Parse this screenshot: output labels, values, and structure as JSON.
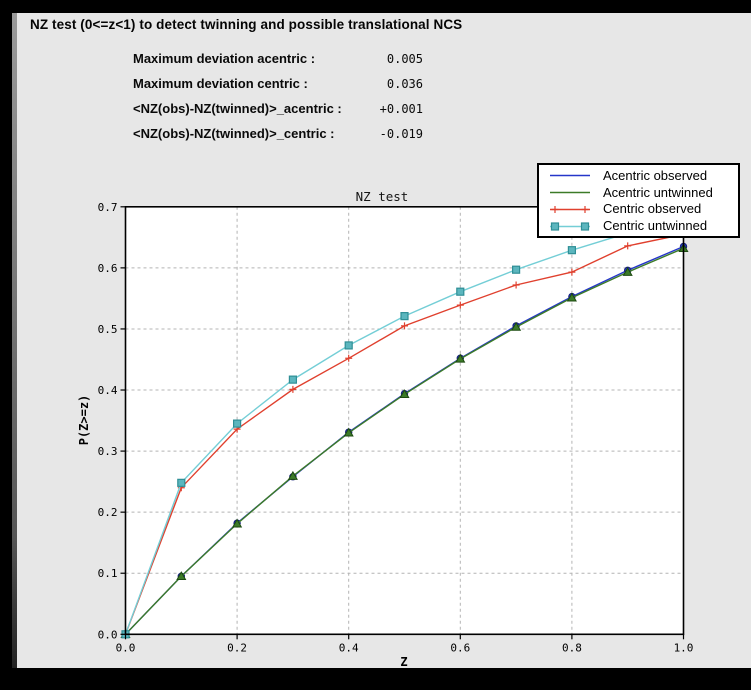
{
  "header": {
    "title": "NZ test (0<=z<1) to detect twinning and possible translational NCS"
  },
  "stats": [
    {
      "label": "Maximum deviation acentric :",
      "value": "0.005"
    },
    {
      "label": "Maximum deviation centric :",
      "value": "0.036"
    },
    {
      "label": "<NZ(obs)-NZ(twinned)>_acentric :",
      "value": "+0.001"
    },
    {
      "label": "<NZ(obs)-NZ(twinned)>_centric :",
      "value": "-0.019"
    }
  ],
  "chart_data": {
    "type": "line",
    "title": "NZ test",
    "xlabel": "Z",
    "ylabel": "P(Z>=z)",
    "xlim": [
      0.0,
      1.0
    ],
    "ylim": [
      0.0,
      0.7
    ],
    "xticks": [
      0.0,
      0.2,
      0.4,
      0.6,
      0.8,
      1.0
    ],
    "yticks": [
      0.0,
      0.1,
      0.2,
      0.3,
      0.4,
      0.5,
      0.6,
      0.7
    ],
    "grid": true,
    "grid_color": "#b4b4b4",
    "legend_position": "top-right",
    "x": [
      0.0,
      0.1,
      0.2,
      0.3,
      0.4,
      0.5,
      0.6,
      0.7,
      0.8,
      0.9,
      1.0
    ],
    "series": [
      {
        "name": "Acentric observed",
        "color": "#2536c9",
        "marker": "circle",
        "marker_edge": "#141e78",
        "values": [
          0.0,
          0.095,
          0.182,
          0.258,
          0.331,
          0.394,
          0.452,
          0.505,
          0.553,
          0.596,
          0.635
        ]
      },
      {
        "name": "Acentric untwinned",
        "color": "#3c7b28",
        "marker": "triangle",
        "marker_edge": "#1c4a10",
        "values": [
          0.0,
          0.095,
          0.181,
          0.259,
          0.33,
          0.393,
          0.451,
          0.503,
          0.551,
          0.593,
          0.632
        ]
      },
      {
        "name": "Centric observed",
        "color": "#e0402e",
        "marker": "plus",
        "marker_edge": "#e0402e",
        "values": [
          0.0,
          0.24,
          0.336,
          0.401,
          0.452,
          0.505,
          0.539,
          0.572,
          0.593,
          0.636,
          0.655
        ]
      },
      {
        "name": "Centric untwinned",
        "color": "#74ced6",
        "marker": "square",
        "marker_fill": "#5cb6be",
        "marker_edge": "#2f8f96",
        "values": [
          0.0,
          0.248,
          0.345,
          0.417,
          0.473,
          0.521,
          0.561,
          0.597,
          0.629,
          0.657,
          0.683
        ]
      }
    ]
  }
}
